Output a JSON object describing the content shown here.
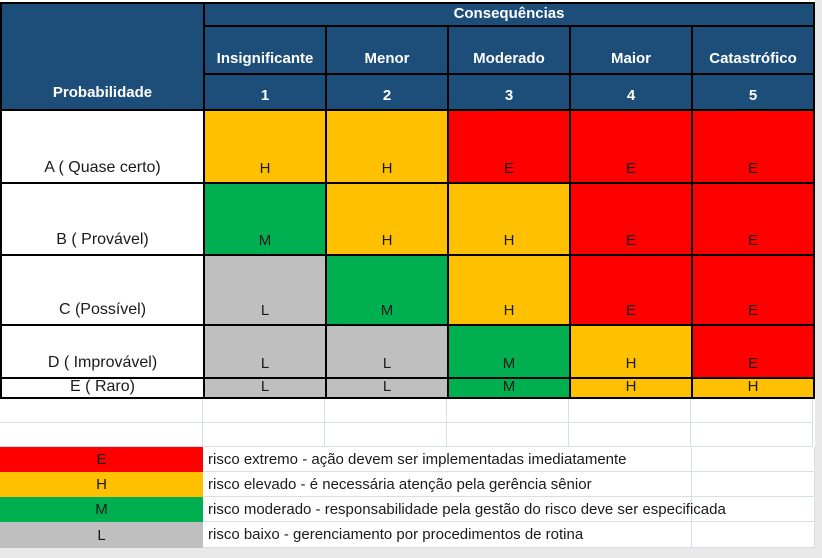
{
  "colors": {
    "header_bg": "#1C4E79",
    "header_text": "#FFFFFF",
    "extreme": "#FF0000",
    "high": "#FFC000",
    "moderate": "#00B050",
    "low": "#BFBFBF",
    "gridline": "#D8DEE9",
    "canvas_margin": "#E9E9E9"
  },
  "header": {
    "consequences_label": "Consequências",
    "probability_label": "Probabilidade",
    "columns": [
      {
        "label": "Insignificante",
        "number": "1"
      },
      {
        "label": "Menor",
        "number": "2"
      },
      {
        "label": "Moderado",
        "number": "3"
      },
      {
        "label": "Maior",
        "number": "4"
      },
      {
        "label": "Catastrófico",
        "number": "5"
      }
    ]
  },
  "matrix": {
    "rows": [
      {
        "label": "A ( Quase certo)",
        "cells": [
          {
            "text": "H",
            "level": "high"
          },
          {
            "text": "H",
            "level": "high"
          },
          {
            "text": "E",
            "level": "extreme"
          },
          {
            "text": "E",
            "level": "extreme"
          },
          {
            "text": "E",
            "level": "extreme"
          }
        ]
      },
      {
        "label": "B ( Provável)",
        "cells": [
          {
            "text": "M",
            "level": "moderate"
          },
          {
            "text": "H",
            "level": "high"
          },
          {
            "text": "H",
            "level": "high"
          },
          {
            "text": "E",
            "level": "extreme"
          },
          {
            "text": "E",
            "level": "extreme"
          }
        ]
      },
      {
        "label": "C (Possível)",
        "cells": [
          {
            "text": "L",
            "level": "low"
          },
          {
            "text": "M",
            "level": "moderate"
          },
          {
            "text": "H",
            "level": "high"
          },
          {
            "text": "E",
            "level": "extreme"
          },
          {
            "text": "E",
            "level": "extreme"
          }
        ]
      },
      {
        "label": "D ( Improvável)",
        "cells": [
          {
            "text": "L",
            "level": "low"
          },
          {
            "text": "L",
            "level": "low"
          },
          {
            "text": "M",
            "level": "moderate"
          },
          {
            "text": "H",
            "level": "high"
          },
          {
            "text": "E",
            "level": "extreme"
          }
        ]
      },
      {
        "label": "E ( Raro)",
        "cells": [
          {
            "text": "L",
            "level": "low"
          },
          {
            "text": "L",
            "level": "low"
          },
          {
            "text": "M",
            "level": "moderate"
          },
          {
            "text": "H",
            "level": "high"
          },
          {
            "text": "H",
            "level": "high"
          }
        ]
      }
    ]
  },
  "legend": {
    "items": [
      {
        "letter": "E",
        "level": "extreme",
        "description": "risco extremo - ação devem ser implementadas imediatamente"
      },
      {
        "letter": "H",
        "level": "high",
        "description": "risco elevado - é necessária atenção pela gerência sênior"
      },
      {
        "letter": "M",
        "level": "moderate",
        "description": "risco moderado - responsabilidade pela gestão do risco deve ser especificada"
      },
      {
        "letter": "L",
        "level": "low",
        "description": "risco baixo - gerenciamento por procedimentos de rotina"
      }
    ]
  }
}
